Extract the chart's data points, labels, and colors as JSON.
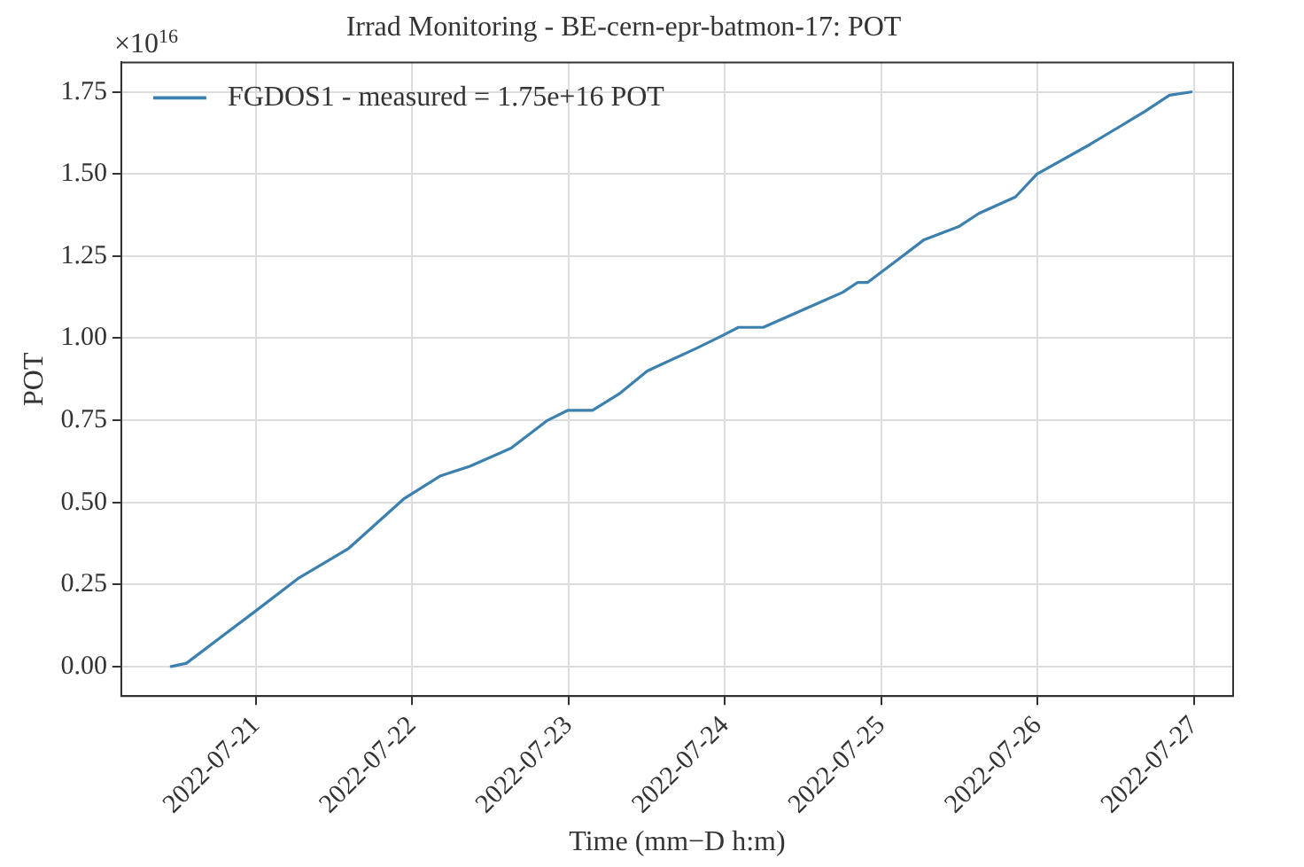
{
  "chart_data": {
    "type": "line",
    "title": "Irrad Monitoring - BE-cern-epr-batmon-17: POT",
    "xlabel": "Time (mm−D h:m)",
    "ylabel": "POT",
    "annotations": [
      "×10$^{16}$"
    ],
    "x": [
      "2022-07-20T11:00",
      "2022-07-20T13:20",
      "2022-07-20T23:45",
      "2022-07-21T06:37",
      "2022-07-21T14:15",
      "2022-07-21T22:40",
      "2022-07-22T04:15",
      "2022-07-22T08:50",
      "2022-07-22T15:10",
      "2022-07-22T20:47",
      "2022-07-22T23:50",
      "2022-07-23T03:40",
      "2022-07-23T07:44",
      "2022-07-23T12:04",
      "2022-07-23T19:42",
      "2022-07-23T23:31",
      "2022-07-24T02:04",
      "2022-07-24T05:53",
      "2022-07-24T13:31",
      "2022-07-24T18:06",
      "2022-07-24T20:23",
      "2022-07-24T21:55",
      "2022-07-25T06:34",
      "2022-07-25T11:54",
      "2022-07-25T14:58",
      "2022-07-25T20:34",
      "2022-07-25T23:53",
      "2022-07-26T08:01",
      "2022-07-26T16:25",
      "2022-07-26T20:14",
      "2022-07-26T23:33"
    ],
    "series": [
      {
        "name": "FGDOS1 - measured = 1.75e+16 POT",
        "color": "#3b80ae",
        "values": [
          0,
          0.01,
          0.166,
          0.27,
          0.36,
          0.51,
          0.58,
          0.61,
          0.665,
          0.75,
          0.78,
          0.78,
          0.83,
          0.9,
          0.97,
          1.007,
          1.033,
          1.033,
          1.1,
          1.14,
          1.17,
          1.17,
          1.3,
          1.34,
          1.38,
          1.43,
          1.5,
          1.59,
          1.69,
          1.74,
          1.75
        ]
      }
    ],
    "xlim": [
      "2022-07-20T03:20",
      "2022-07-27T06:00"
    ],
    "xticks": [
      "2022-07-21",
      "2022-07-22",
      "2022-07-23",
      "2022-07-24",
      "2022-07-25",
      "2022-07-26",
      "2022-07-27"
    ],
    "ylim": [
      -0.09,
      1.84
    ],
    "yticks": [
      {
        "value": 0,
        "label": "0.00"
      },
      {
        "value": 0.25,
        "label": "0.25"
      },
      {
        "value": 0.5,
        "label": "0.50"
      },
      {
        "value": 0.75,
        "label": "0.75"
      },
      {
        "value": 1,
        "label": "1.00"
      },
      {
        "value": 1.25,
        "label": "1.25"
      },
      {
        "value": 1.5,
        "label": "1.50"
      },
      {
        "value": 1.75,
        "label": "1.75"
      }
    ],
    "grid": true,
    "legend": "top left",
    "marker": "none",
    "line_style": "solid"
  }
}
